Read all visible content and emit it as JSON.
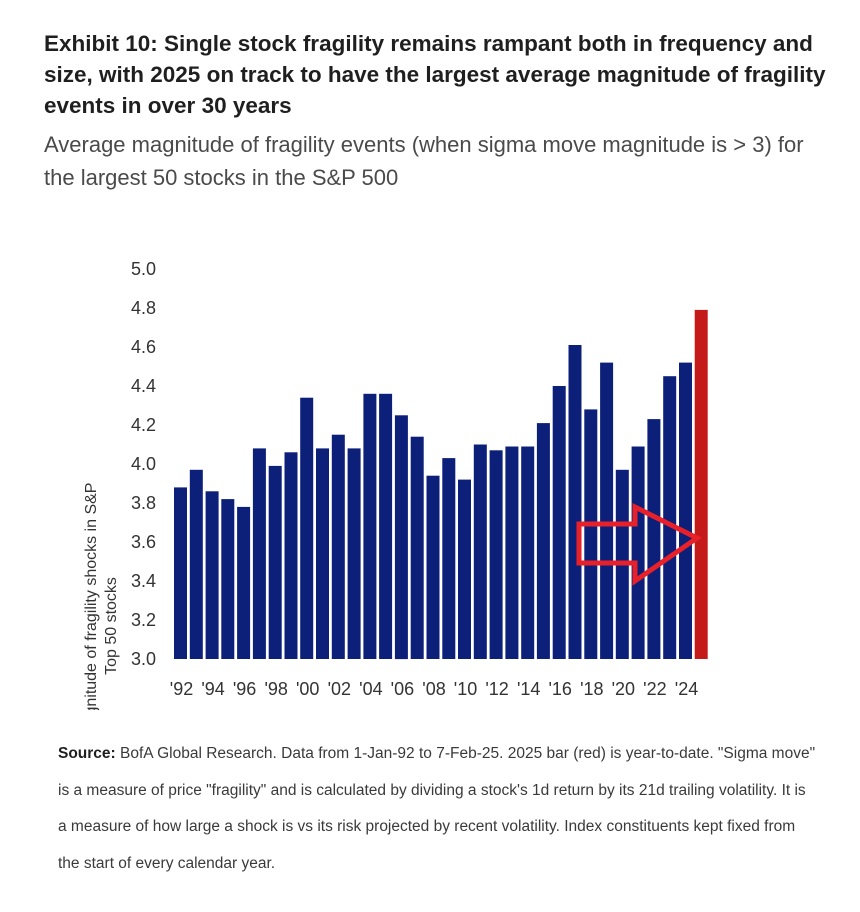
{
  "header": {
    "title": "Exhibit 10: Single stock fragility remains rampant both in frequency and size, with 2025 on track to have the largest average magnitude of fragility events in over 30 years",
    "subtitle": "Average magnitude of fragility events (when sigma move magnitude is > 3) for the largest 50 stocks in the S&P 500"
  },
  "chart_data": {
    "type": "bar",
    "title": "",
    "xlabel": "",
    "ylabel_line1": "Avg magnitude of fragility shocks in S&P",
    "ylabel_line2": "Top 50 stocks",
    "ylim": [
      3.0,
      5.0
    ],
    "yticks": [
      "3.0",
      "3.2",
      "3.4",
      "3.6",
      "3.8",
      "4.0",
      "4.2",
      "4.4",
      "4.6",
      "4.8",
      "5.0"
    ],
    "categories": [
      "1992",
      "1993",
      "1994",
      "1995",
      "1996",
      "1997",
      "1998",
      "1999",
      "2000",
      "2001",
      "2002",
      "2003",
      "2004",
      "2005",
      "2006",
      "2007",
      "2008",
      "2009",
      "2010",
      "2011",
      "2012",
      "2013",
      "2014",
      "2015",
      "2016",
      "2017",
      "2018",
      "2019",
      "2020",
      "2021",
      "2022",
      "2023",
      "2024",
      "2025"
    ],
    "xtick_labels": [
      "'92",
      "'94",
      "'96",
      "'98",
      "'00",
      "'02",
      "'04",
      "'06",
      "'08",
      "'10",
      "'12",
      "'14",
      "'16",
      "'18",
      "'20",
      "'22",
      "'24"
    ],
    "values": [
      3.88,
      3.97,
      3.86,
      3.82,
      3.78,
      4.08,
      3.99,
      4.06,
      4.34,
      4.08,
      4.15,
      4.08,
      4.36,
      4.36,
      4.25,
      4.14,
      3.94,
      4.03,
      3.92,
      4.1,
      4.07,
      4.09,
      4.09,
      4.21,
      4.4,
      4.61,
      4.28,
      4.52,
      3.97,
      4.09,
      4.23,
      4.45,
      4.52,
      4.79
    ],
    "colors": {
      "default": "#0c2079",
      "highlight": "#c41a1a",
      "arrow": "#e8202a"
    },
    "highlight_category": "2025"
  },
  "footer": {
    "source_label": "Source:",
    "source_text": " BofA Global Research. Data from 1-Jan-92 to 7-Feb-25. 2025 bar (red) is year-to-date. \"Sigma move\" is a measure of price \"fragility\" and is calculated by dividing a stock's 1d return by its 21d trailing volatility. It is a measure of how large a shock is vs its risk projected by recent volatility. Index constituents kept fixed from the start of every calendar year."
  }
}
